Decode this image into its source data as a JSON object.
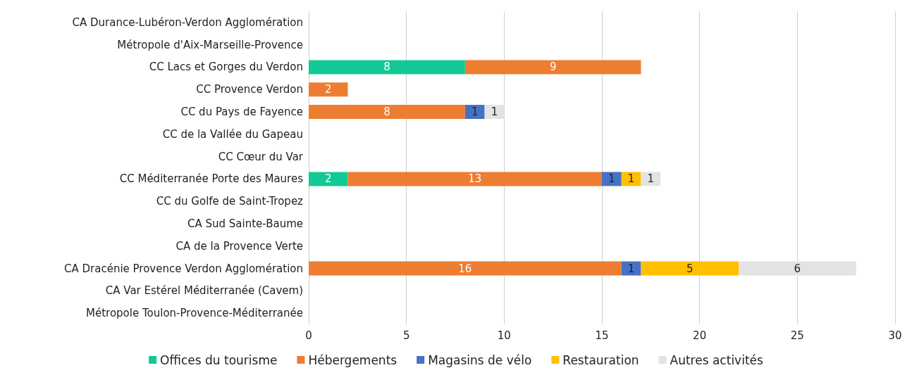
{
  "chart_data": {
    "type": "bar",
    "orientation": "horizontal",
    "stacked": true,
    "data_labels": true,
    "grid": "x",
    "legend": "bottom",
    "categories": [
      "CA Durance-Lubéron-Verdon Agglomération",
      "Métropole d'Aix-Marseille-Provence",
      "CC Lacs et Gorges du Verdon",
      "CC Provence Verdon",
      "CC du Pays de Fayence",
      "CC de la Vallée du Gapeau",
      "CC Cœur du Var",
      "CC Méditerranée Porte des Maures",
      "CC du Golfe de Saint-Tropez",
      "CA Sud Sainte-Baume",
      "CA de la Provence Verte",
      "CA Dracénie Provence Verdon Agglomération",
      "CA Var Estérel Méditerranée (Cavem)",
      "Métropole Toulon-Provence-Méditerranée"
    ],
    "xlim": [
      0,
      30
    ],
    "xticks": [
      0,
      5,
      10,
      15,
      20,
      25,
      30
    ],
    "series": [
      {
        "name": "Offices du tourisme",
        "color": "#12c996",
        "values": [
          null,
          null,
          8,
          null,
          null,
          null,
          null,
          2,
          null,
          null,
          null,
          null,
          null,
          null
        ]
      },
      {
        "name": "Hébergements",
        "color": "#ed7d31",
        "values": [
          null,
          null,
          9,
          2,
          8,
          null,
          null,
          13,
          null,
          null,
          null,
          16,
          null,
          null
        ]
      },
      {
        "name": "Magasins de vélo",
        "color": "#4472c4",
        "values": [
          null,
          null,
          null,
          null,
          1,
          null,
          null,
          1,
          null,
          null,
          null,
          1,
          null,
          null
        ]
      },
      {
        "name": "Restauration",
        "color": "#ffc000",
        "values": [
          null,
          null,
          null,
          null,
          null,
          null,
          null,
          1,
          null,
          null,
          null,
          5,
          null,
          null
        ]
      },
      {
        "name": "Autres activités",
        "color": "#e3e3e3",
        "values": [
          null,
          null,
          null,
          null,
          1,
          null,
          null,
          1,
          null,
          null,
          null,
          6,
          null,
          null
        ]
      }
    ]
  }
}
